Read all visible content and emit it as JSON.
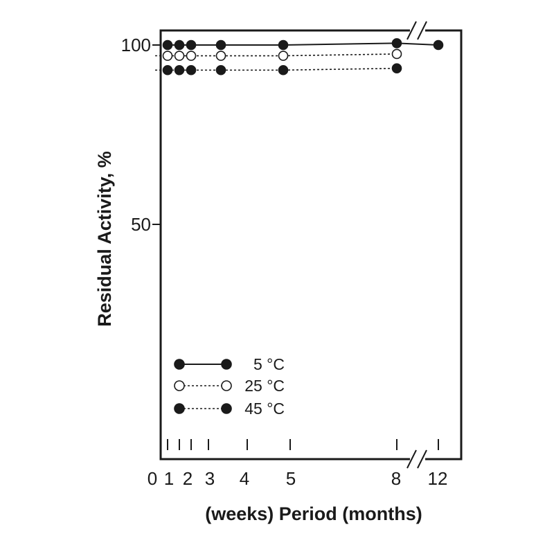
{
  "chart_data": {
    "type": "line",
    "title": "",
    "ylabel": "Residual Activity, %",
    "xlabel": "(weeks) Period (months)",
    "ylim": [
      0,
      100
    ],
    "y_ticks": [
      "50",
      "100"
    ],
    "x_ticks": [
      "0",
      "1",
      "2",
      "3",
      "4",
      "5",
      "8",
      "12"
    ],
    "axis_break": true,
    "grid": false,
    "legend_position": "bottom-left",
    "series": [
      {
        "name": "5 °C",
        "style": "solid",
        "marker": "filled",
        "color": "#1a1a1a",
        "points": [
          {
            "x": "0",
            "y": 100
          },
          {
            "x": "1",
            "y": 100
          },
          {
            "x": "2",
            "y": 100
          },
          {
            "x": "3",
            "y": 100
          },
          {
            "x": "4",
            "y": 100
          },
          {
            "x": "8",
            "y": 100.5
          },
          {
            "x": "12",
            "y": 100
          }
        ]
      },
      {
        "name": "25 °C",
        "style": "dashed",
        "marker": "open",
        "color": "#1a1a1a",
        "points": [
          {
            "x": "0",
            "y": 97
          },
          {
            "x": "1",
            "y": 97
          },
          {
            "x": "2",
            "y": 97
          },
          {
            "x": "3",
            "y": 97
          },
          {
            "x": "4",
            "y": 97
          },
          {
            "x": "8",
            "y": 97.5
          }
        ]
      },
      {
        "name": "45 °C",
        "style": "dashed",
        "marker": "filled",
        "color": "#1a1a1a",
        "points": [
          {
            "x": "0",
            "y": 93
          },
          {
            "x": "1",
            "y": 93
          },
          {
            "x": "2",
            "y": 93
          },
          {
            "x": "3",
            "y": 93
          },
          {
            "x": "4",
            "y": 93
          },
          {
            "x": "8",
            "y": 93.5
          }
        ]
      }
    ]
  }
}
